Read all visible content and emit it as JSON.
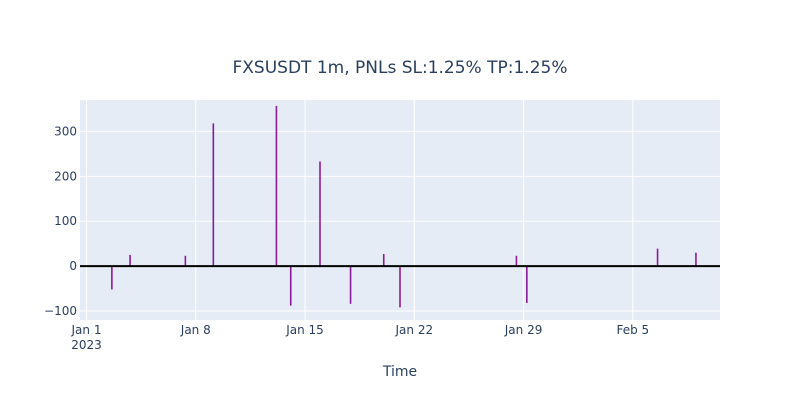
{
  "chart_data": {
    "type": "bar",
    "title": "FXSUSDT 1m, PNLs  SL:1.25%   TP:1.25%",
    "xlabel": "Time",
    "ylabel": "",
    "x_type": "date",
    "xlim": [
      "2022-12-31T14:00",
      "2023-02-10T14:00"
    ],
    "ylim": [
      -120,
      370
    ],
    "x_ticks": [
      {
        "date": "2023-01-01",
        "label": "Jan 1",
        "sublabel": "2023"
      },
      {
        "date": "2023-01-08",
        "label": "Jan 8",
        "sublabel": ""
      },
      {
        "date": "2023-01-15",
        "label": "Jan 15",
        "sublabel": ""
      },
      {
        "date": "2023-01-22",
        "label": "Jan 22",
        "sublabel": ""
      },
      {
        "date": "2023-01-29",
        "label": "Jan 29",
        "sublabel": ""
      },
      {
        "date": "2023-02-05",
        "label": "Feb 5",
        "sublabel": ""
      }
    ],
    "y_ticks": [
      {
        "value": -100,
        "label": "−100"
      },
      {
        "value": 0,
        "label": "0"
      },
      {
        "value": 100,
        "label": "100"
      },
      {
        "value": 200,
        "label": "200"
      },
      {
        "value": 300,
        "label": "300"
      }
    ],
    "zero_line": true,
    "grid": true,
    "series": [
      {
        "color": "#8b1a9b",
        "points": [
          {
            "x": "2023-01-02T15:00",
            "y": -52
          },
          {
            "x": "2023-01-03T19:00",
            "y": 25
          },
          {
            "x": "2023-01-07T08:00",
            "y": 23
          },
          {
            "x": "2023-01-09T03:00",
            "y": 318
          },
          {
            "x": "2023-01-13T04:00",
            "y": 357
          },
          {
            "x": "2023-01-14T02:00",
            "y": -88
          },
          {
            "x": "2023-01-15T23:00",
            "y": 233
          },
          {
            "x": "2023-01-17T22:00",
            "y": -84
          },
          {
            "x": "2023-01-20T01:00",
            "y": 27
          },
          {
            "x": "2023-01-21T02:00",
            "y": -92
          },
          {
            "x": "2023-01-28T13:00",
            "y": 23
          },
          {
            "x": "2023-01-29T05:00",
            "y": -82
          },
          {
            "x": "2023-02-06T14:00",
            "y": 39
          },
          {
            "x": "2023-02-09T01:00",
            "y": 30
          }
        ]
      }
    ],
    "colors": {
      "plot_bg": "#e5ecf6",
      "grid": "#ffffff",
      "text": "#2a3f5f",
      "zero_line": "#000000"
    }
  }
}
